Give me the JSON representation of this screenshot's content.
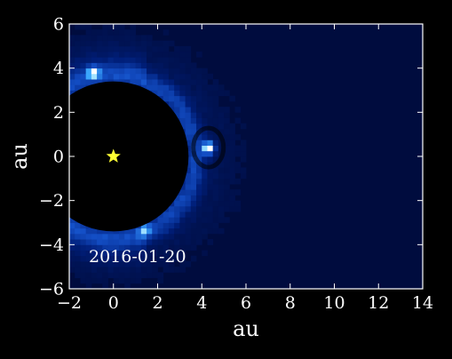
{
  "chart_data": {
    "type": "heatmap",
    "title": "",
    "xlabel": "au",
    "ylabel": "au",
    "xlim": [
      -2,
      14
    ],
    "ylim": [
      -6,
      6
    ],
    "xticks": [
      "−2",
      "0",
      "2",
      "4",
      "6",
      "8",
      "10",
      "12",
      "14"
    ],
    "yticks": [
      "6",
      "4",
      "2",
      "0",
      "−2",
      "−4",
      "−6"
    ],
    "grid": false,
    "colormap": "dark-navy-to-cyan-white",
    "background_color": "#000000",
    "field_color": "#000c3e",
    "mask": {
      "center": [
        0,
        0
      ],
      "radius": 3.4,
      "color": "#000000"
    },
    "star": {
      "x": 0,
      "y": 0,
      "color": "#ffff33"
    },
    "sources": [
      {
        "x": 4.3,
        "y": 0.4,
        "peak": 1.0
      },
      {
        "x": -0.9,
        "y": 3.8,
        "peak": 0.75
      },
      {
        "x": 1.4,
        "y": -3.3,
        "peak": 0.5
      }
    ],
    "annotation": "2016-01-20"
  }
}
